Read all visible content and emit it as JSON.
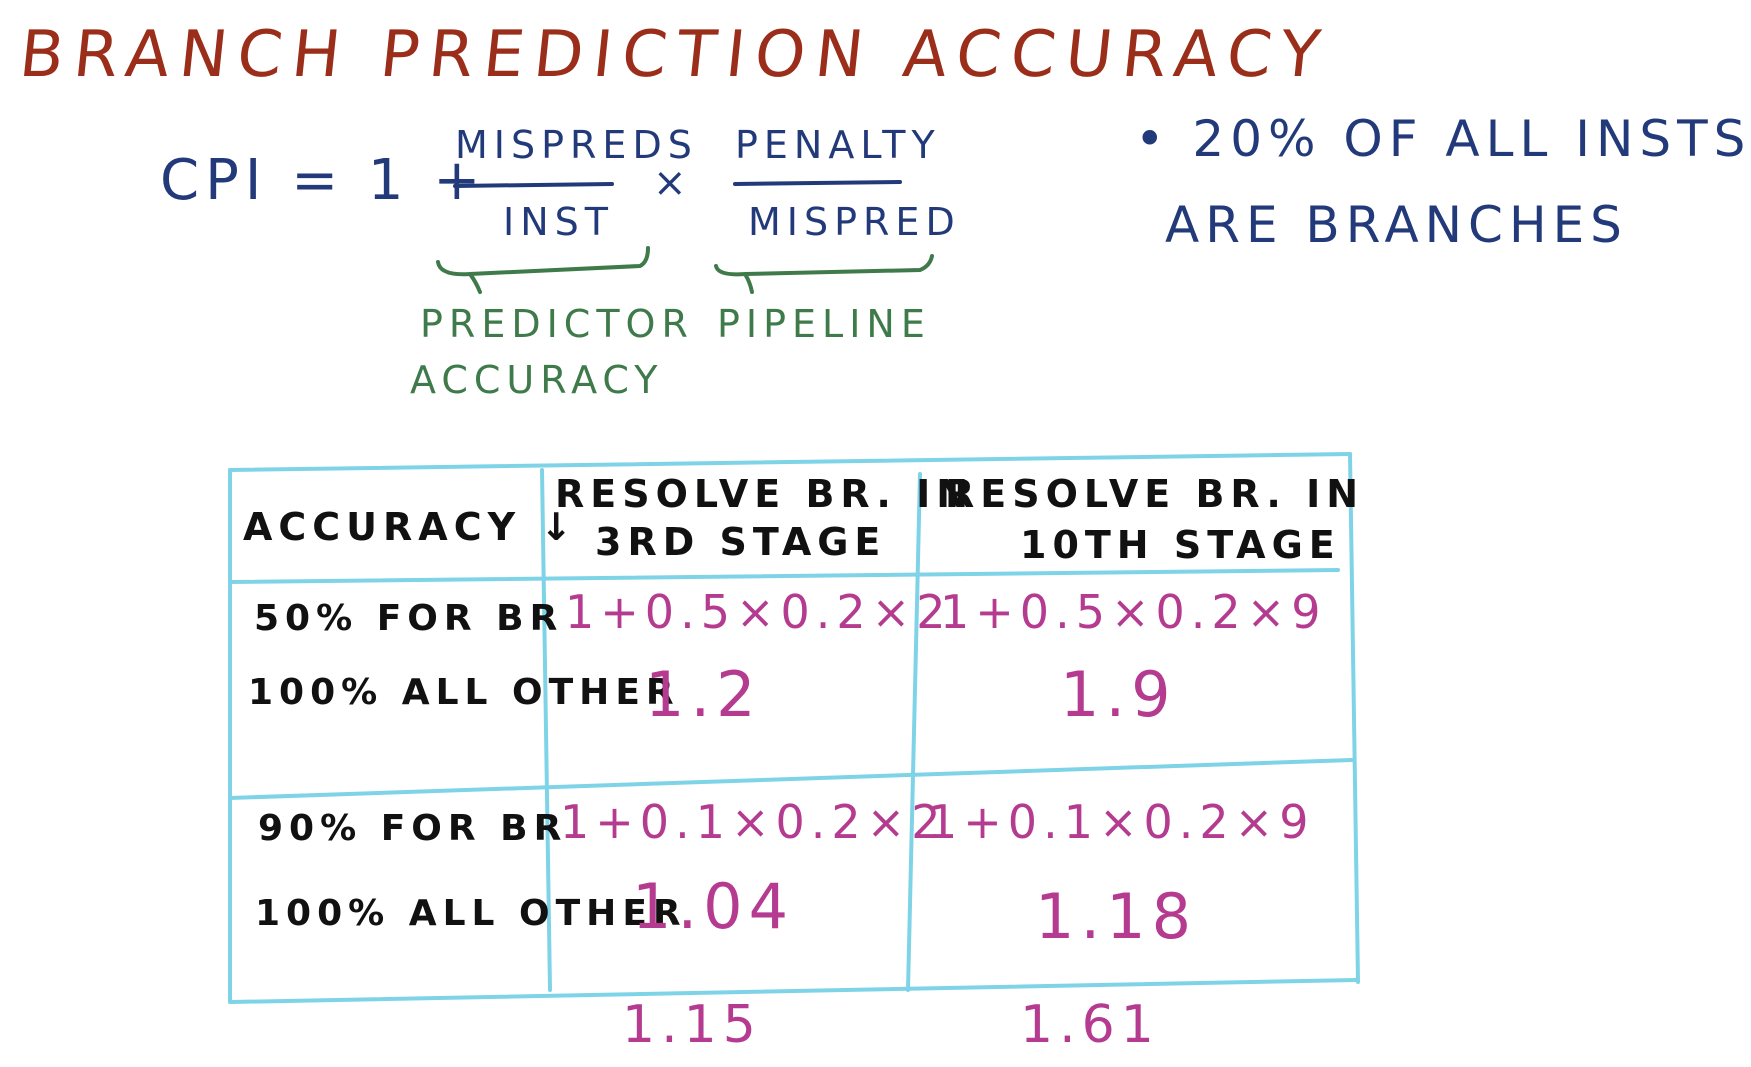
{
  "title": "BRANCH PREDICTION ACCURACY",
  "formula": {
    "prefix": "CPI = 1 +",
    "fraction1": {
      "numerator": "MISPREDS",
      "denominator": "INST"
    },
    "times": "×",
    "fraction2": {
      "numerator": "PENALTY",
      "denominator": "MISPRED"
    },
    "brace_labels": {
      "predictor_line1": "PREDICTOR",
      "predictor_line2": "ACCURACY",
      "pipeline": "PIPELINE"
    }
  },
  "note": {
    "line1": "• 20% OF ALL INSTS",
    "line2": "ARE BRANCHES"
  },
  "table": {
    "header_accuracy": "ACCURACY ↓",
    "header_col1_line1": "RESOLVE BR. IN",
    "header_col1_line2": "3RD STAGE",
    "header_col2_line1": "RESOLVE BR. IN",
    "header_col2_line2": "10TH STAGE",
    "rows": [
      {
        "label_line1": "50% FOR BR",
        "label_line2": "100% ALL OTHER",
        "col1_expr": "1+0.5×0.2×2",
        "col1_result": "1.2",
        "col2_expr": "1+0.5×0.2×9",
        "col2_result": "1.9"
      },
      {
        "label_line1": "90% FOR BR",
        "label_line2": "100% ALL OTHER",
        "col1_expr": "1+0.1×0.2×2",
        "col1_result": "1.04",
        "col2_expr": "1+0.1×0.2×9",
        "col2_result": "1.18"
      }
    ],
    "ratio_col1": "1.15",
    "ratio_col2": "1.61"
  },
  "colors": {
    "title": "#9a2e1a",
    "formula": "#233a7a",
    "brace_labels": "#3f7a4a",
    "results": "#b43b8f",
    "table_lines": "#7fd3e6",
    "labels": "#111111"
  }
}
